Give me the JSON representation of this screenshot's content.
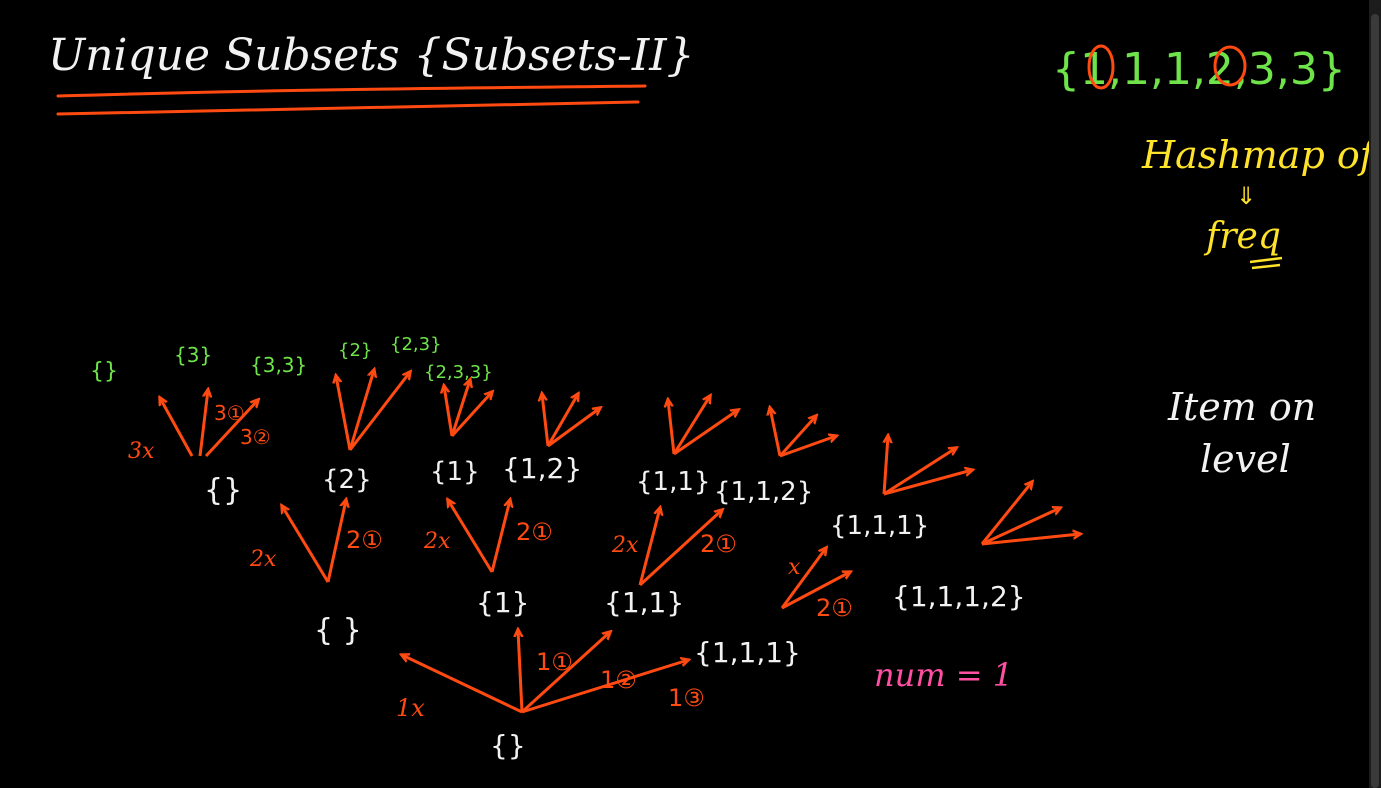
{
  "title": "Unique Subsets {Subsets-II}",
  "input_set": "{1,1,1,2,3,3}",
  "notes": {
    "hashmap_line1": "Hashmap of",
    "hashmap_arrow": "⇓",
    "hashmap_line2": "freq",
    "item_line1": "Item on",
    "item_line2": "level",
    "num_note": "num = 1"
  },
  "colors": {
    "background": "#000000",
    "white_ink": "#f2f2f2",
    "orange_ink": "#ff4a12",
    "green_ink": "#6fe34a",
    "yellow_ink": "#ffe22a",
    "pink_ink": "#ff4fa3"
  },
  "nodes": {
    "root": "{}",
    "l1_empty": "{ }",
    "l1_one": "{1}",
    "l1_one_one": "{1,1}",
    "l1_one_one_one": "{1,1,1}",
    "l2_empty": "{}",
    "l2_two": "{2}",
    "l2_one": "{1}",
    "l2_one_two": "{1,2}",
    "l2_one_one": "{1,1}",
    "l2_one_one_two": "{1,1,2}",
    "l2_one_one_one": "{1,1,1}",
    "l2_one_one_one_two": "{1,1,1,2}"
  },
  "edge_labels": {
    "root_1x": "1x",
    "root_1a": "1①",
    "root_1b": "1②",
    "root_1c": "1③",
    "a_2x": "2x",
    "a_2o": "2①",
    "b_2x": "2x",
    "b_2o": "2①",
    "c_2x": "2x",
    "c_2o": "2①",
    "d_2x": "x",
    "d_2o": "2①",
    "e_3x": "3x",
    "e_3a": "3①",
    "e_3b": "3②"
  },
  "leaves": {
    "leaf1": "{}",
    "leaf2": "{3}",
    "leaf3": "{3,3}",
    "leaf4": "{2}",
    "leaf5": "{2,3}",
    "leaf6": "{2,3,3}"
  }
}
